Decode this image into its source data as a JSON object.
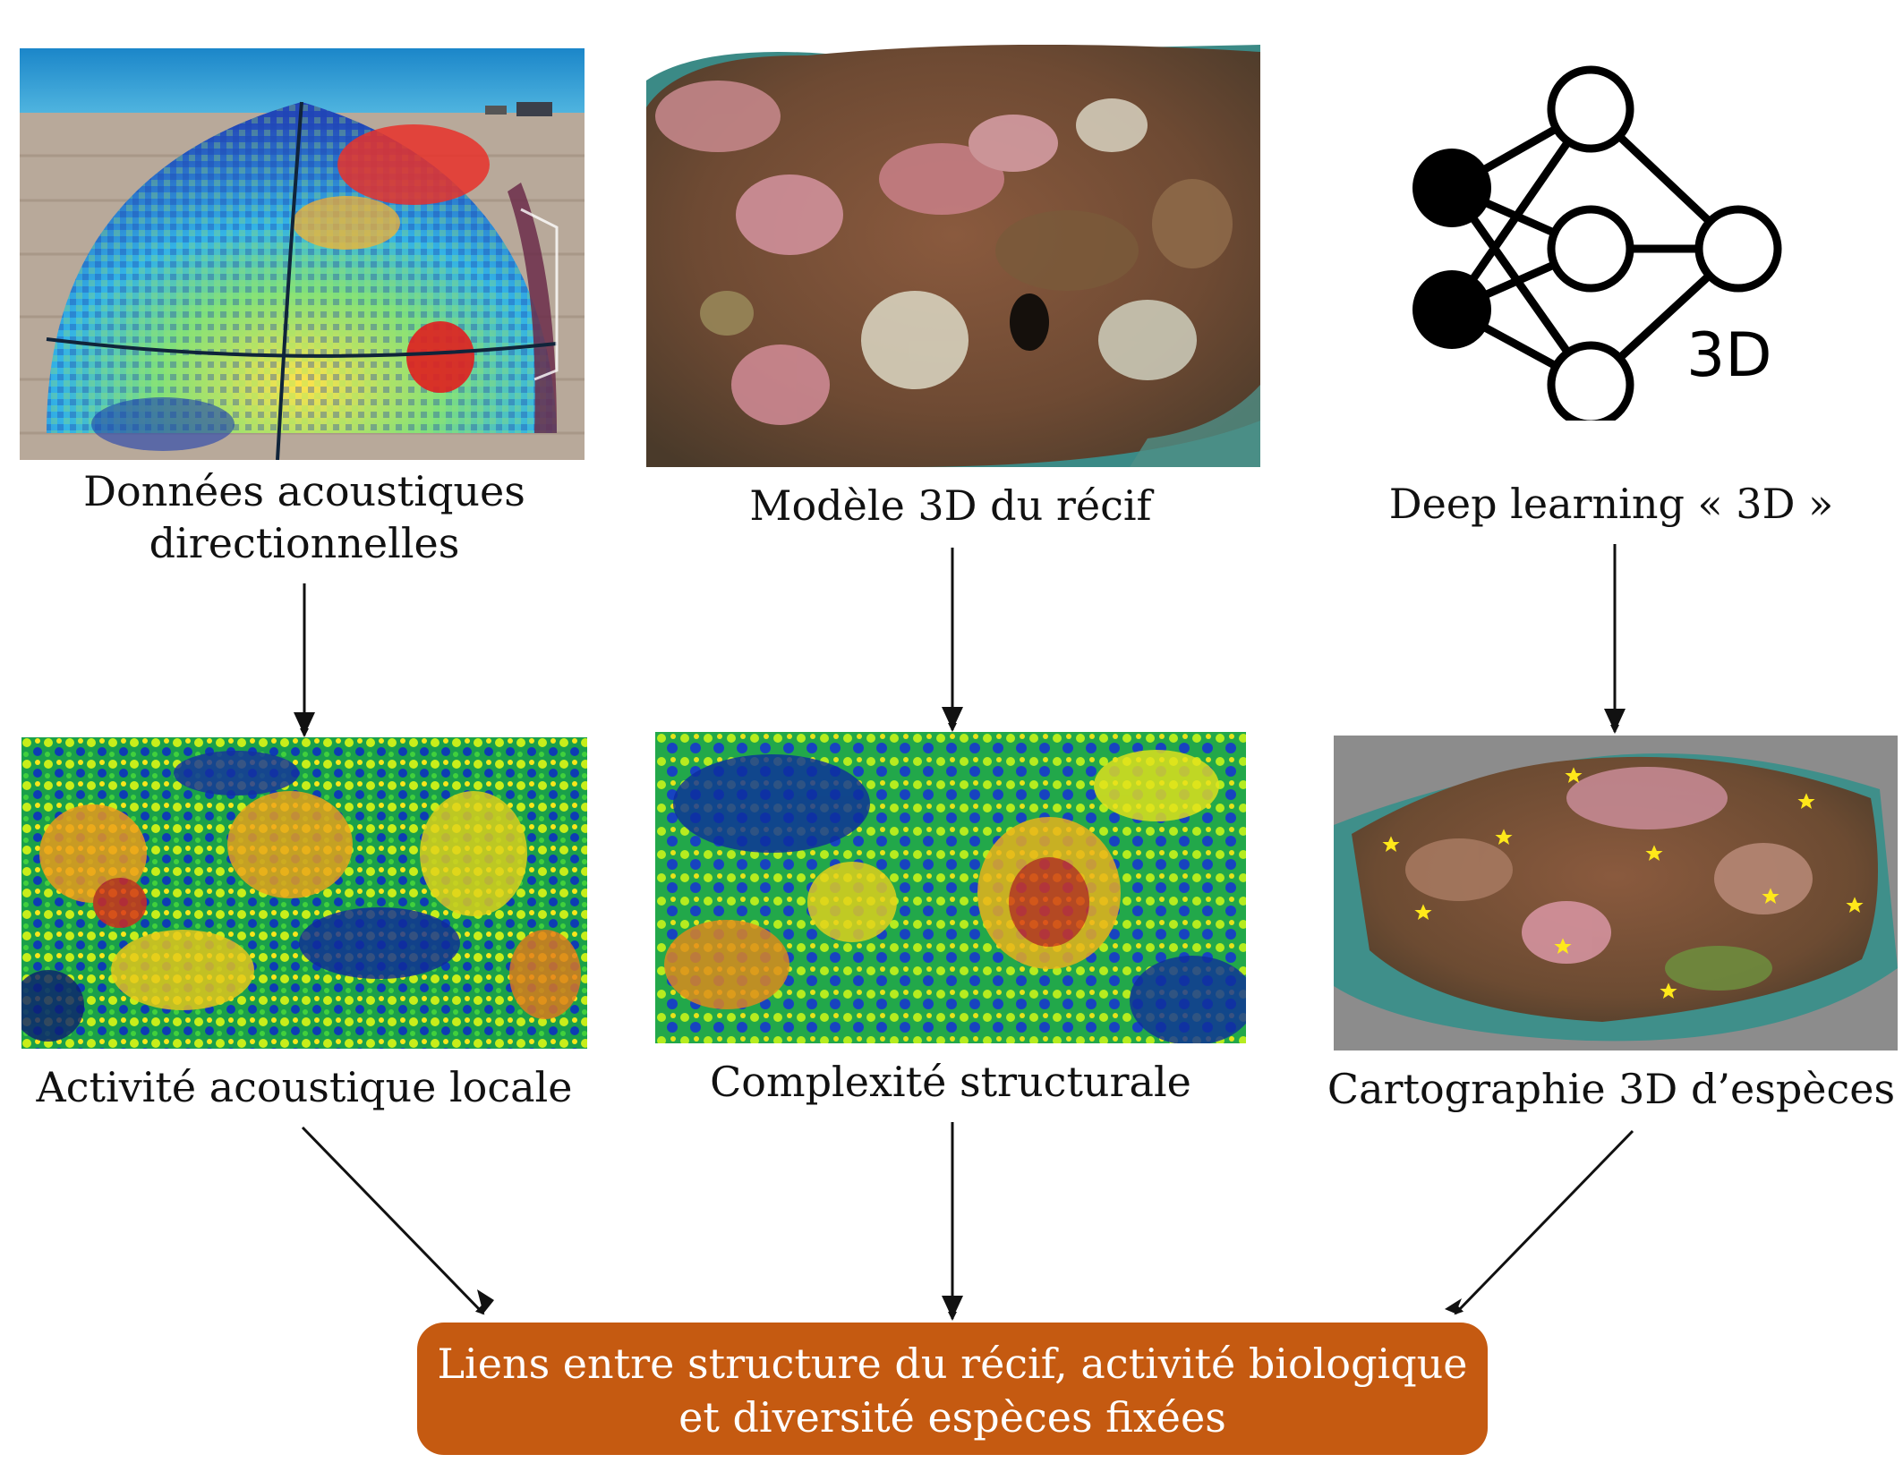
{
  "top_row": [
    {
      "id": "acoustic-dome",
      "label_lines": [
        "Données acoustiques",
        "directionnelles"
      ]
    },
    {
      "id": "reef-3d-model",
      "label_lines": [
        "Modèle 3D du récif"
      ]
    },
    {
      "id": "deep-learning",
      "label_lines": [
        "Deep learning « 3D »"
      ],
      "icon_text": "3D"
    }
  ],
  "bottom_row": [
    {
      "id": "local-acoustic-activity",
      "label": "Activité acoustique locale"
    },
    {
      "id": "structural-complexity",
      "label": "Complexité structurale"
    },
    {
      "id": "species-mapping",
      "label": "Cartographie 3D d’espèces"
    }
  ],
  "result": {
    "lines": [
      "Liens entre structure du récif, activité biologique",
      "et diversité espèces fixées"
    ]
  },
  "colors": {
    "result_box": "#c55a11",
    "result_text": "#ffffff",
    "star_marker": "#ffe81a",
    "arrow": "#111111"
  }
}
